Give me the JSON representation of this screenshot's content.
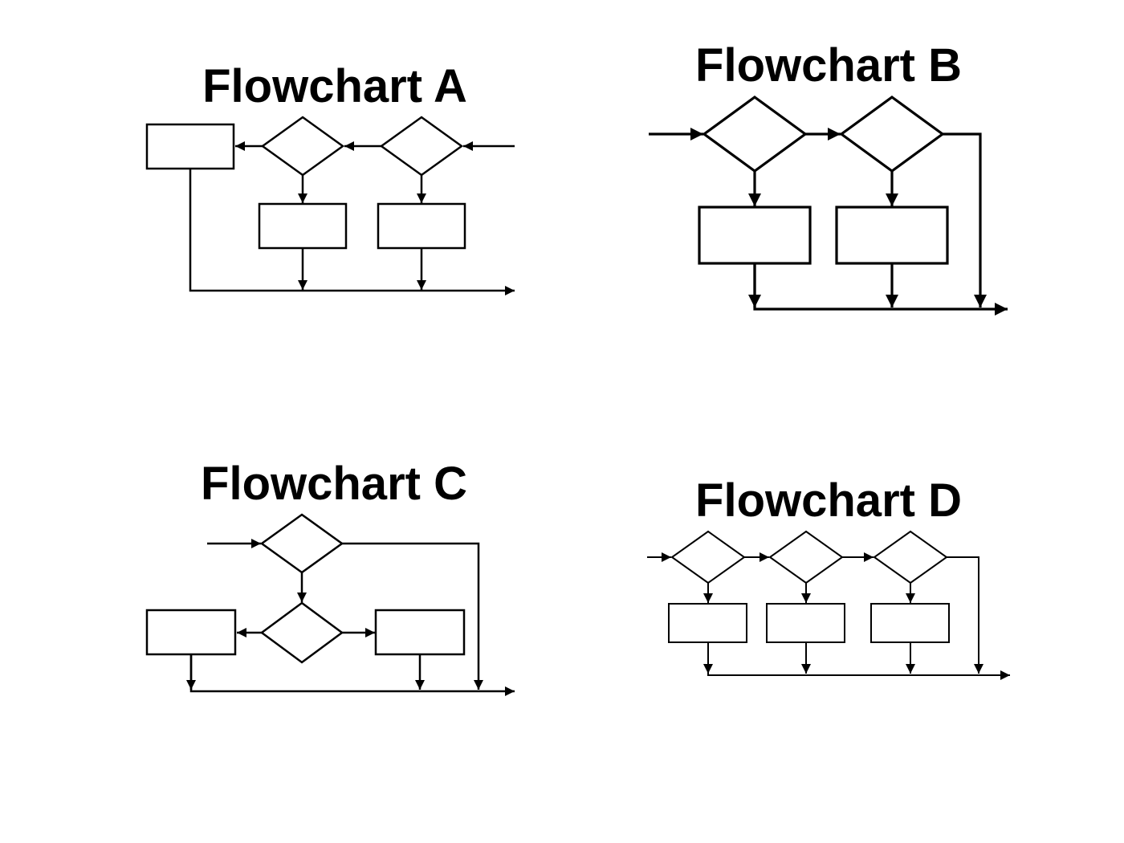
{
  "flowcharts": {
    "a": {
      "title": "Flowchart A"
    },
    "b": {
      "title": "Flowchart B"
    },
    "c": {
      "title": "Flowchart C"
    },
    "d": {
      "title": "Flowchart D"
    }
  }
}
